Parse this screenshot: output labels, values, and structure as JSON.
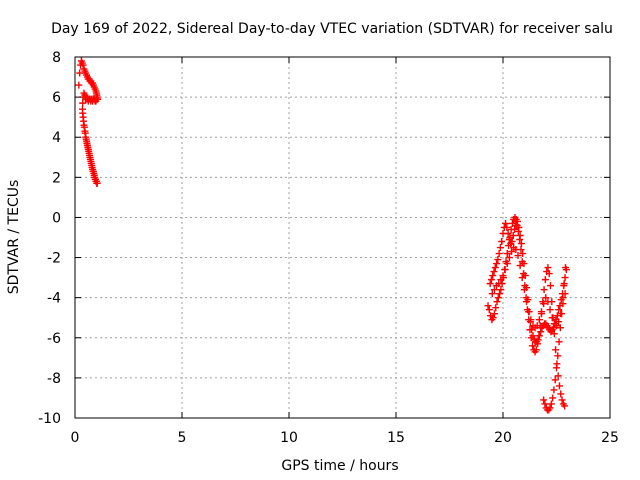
{
  "chart_data": {
    "type": "scatter",
    "title": "Day 169 of 2022, Sidereal Day-to-day VTEC variation (SDTVAR) for receiver salu",
    "xlabel": "GPS time / hours",
    "ylabel": "SDTVAR / TECUs",
    "xlim": [
      0,
      25
    ],
    "ylim": [
      -10,
      8
    ],
    "x_ticks": [
      0,
      5,
      10,
      15,
      20,
      25
    ],
    "y_ticks": [
      -10,
      -8,
      -6,
      -4,
      -2,
      0,
      2,
      4,
      6,
      8
    ],
    "grid": true,
    "marker": "+",
    "colors": {
      "series": "#ff0000"
    },
    "series": [
      {
        "x": [
          0.18,
          0.22,
          0.26,
          0.3,
          0.34,
          0.38,
          0.42,
          0.46,
          0.5,
          0.54,
          0.58,
          0.62,
          0.66,
          0.7,
          0.74,
          0.78,
          0.82,
          0.86,
          0.9,
          0.94,
          0.98,
          1.0,
          1.02,
          1.04,
          1.06,
          1.05,
          1.02,
          0.98,
          0.94,
          0.9,
          0.86,
          0.82,
          0.78,
          0.74,
          0.7,
          0.66,
          0.62,
          0.58,
          0.54,
          0.5,
          0.46,
          0.42,
          0.38,
          0.36,
          0.35,
          0.36,
          0.38,
          0.4,
          0.42,
          0.44,
          0.46,
          0.48,
          0.5,
          0.52,
          0.54,
          0.56,
          0.58,
          0.6,
          0.62,
          0.64,
          0.66,
          0.68,
          0.7,
          0.72,
          0.74,
          0.76,
          0.78,
          0.8,
          0.82,
          0.84,
          0.86,
          0.88,
          0.9,
          0.92,
          0.94,
          0.96,
          0.98,
          1.0,
          1.02,
          1.04
        ],
        "y": [
          6.6,
          7.2,
          7.6,
          7.8,
          7.7,
          7.6,
          7.4,
          7.3,
          7.2,
          7.1,
          7.0,
          6.9,
          6.9,
          6.8,
          6.8,
          6.7,
          6.7,
          6.6,
          6.5,
          6.4,
          6.3,
          6.2,
          6.1,
          6.0,
          5.9,
          5.9,
          5.9,
          5.8,
          5.8,
          5.9,
          5.9,
          5.8,
          5.9,
          5.8,
          5.9,
          5.9,
          5.8,
          5.9,
          6.0,
          5.9,
          6.1,
          6.2,
          6.0,
          5.7,
          5.4,
          5.2,
          5.0,
          4.8,
          4.6,
          4.5,
          4.3,
          4.2,
          4.0,
          3.9,
          3.8,
          3.7,
          3.6,
          3.5,
          3.4,
          3.3,
          3.2,
          3.1,
          3.0,
          2.9,
          2.8,
          2.7,
          2.6,
          2.5,
          2.4,
          2.3,
          2.3,
          2.2,
          2.1,
          2.0,
          1.9,
          1.9,
          1.8,
          1.8,
          1.7,
          1.7
        ]
      },
      {
        "x": [
          19.3,
          19.36,
          19.42,
          19.48,
          19.54,
          19.6,
          19.66,
          19.72,
          19.78,
          19.84,
          19.9,
          19.96,
          20.02,
          20.08,
          20.14,
          20.2,
          20.26,
          20.32,
          20.38,
          20.44,
          20.5,
          20.56,
          20.62,
          20.68,
          20.74,
          20.8,
          20.86,
          20.92,
          20.98,
          21.04,
          21.1,
          21.16,
          21.22,
          21.28,
          21.34,
          21.4,
          21.46,
          21.52,
          21.58,
          21.64,
          21.7,
          21.76,
          21.82,
          21.88,
          21.94,
          22.0,
          22.06,
          22.12,
          22.18,
          22.24,
          22.3,
          22.36,
          22.42,
          22.48,
          22.54,
          22.6,
          22.66,
          22.72,
          22.78,
          22.84,
          22.9,
          22.96
        ],
        "y": [
          -4.4,
          -4.6,
          -4.9,
          -5.1,
          -5.0,
          -4.8,
          -4.5,
          -4.2,
          -4.0,
          -3.8,
          -3.6,
          -3.3,
          -3.0,
          -2.6,
          -2.2,
          -1.8,
          -1.4,
          -1.0,
          -0.6,
          -0.3,
          -0.1,
          0.0,
          -0.1,
          -0.2,
          -0.5,
          -0.9,
          -1.3,
          -1.8,
          -2.3,
          -2.9,
          -3.5,
          -4.1,
          -4.7,
          -5.2,
          -5.6,
          -5.9,
          -6.1,
          -6.2,
          -6.2,
          -6.1,
          -5.9,
          -5.7,
          -5.5,
          -5.4,
          -5.3,
          -5.3,
          -5.4,
          -5.5,
          -5.6,
          -5.7,
          -5.6,
          -5.5,
          -5.3,
          -5.1,
          -4.9,
          -4.6,
          -4.4,
          -4.1,
          -3.8,
          -3.4,
          -3.0,
          -2.6
        ]
      },
      {
        "x": [
          19.4,
          19.46,
          19.52,
          19.58,
          19.64,
          19.7,
          19.76,
          19.82,
          19.88,
          19.94,
          20.0,
          20.06,
          20.12,
          20.18,
          20.24,
          20.3,
          20.36,
          20.42,
          20.48,
          20.54,
          20.6,
          20.66,
          20.72,
          20.78,
          20.84,
          20.9,
          20.96,
          21.02,
          21.08,
          21.14,
          21.2,
          21.26,
          21.32,
          21.38,
          21.44,
          21.5,
          21.56,
          21.62,
          21.68,
          21.74,
          21.8,
          21.86,
          21.92,
          21.98,
          22.04,
          22.1,
          22.16,
          22.22,
          22.28,
          22.34,
          22.4,
          22.46,
          22.52,
          22.58,
          22.64,
          22.7,
          22.76,
          22.82,
          22.88
        ],
        "y": [
          -3.3,
          -3.1,
          -2.9,
          -2.7,
          -2.5,
          -2.3,
          -2.1,
          -1.8,
          -1.5,
          -1.2,
          -0.8,
          -0.5,
          -0.3,
          -0.5,
          -0.8,
          -1.1,
          -1.3,
          -1.2,
          -0.9,
          -0.6,
          -0.4,
          -0.4,
          -0.7,
          -1.1,
          -1.6,
          -2.2,
          -2.8,
          -3.4,
          -4.0,
          -4.6,
          -5.1,
          -5.6,
          -6.0,
          -6.4,
          -6.6,
          -6.7,
          -6.6,
          -6.3,
          -5.9,
          -5.4,
          -4.8,
          -4.2,
          -3.6,
          -3.1,
          -2.7,
          -2.5,
          -2.8,
          -3.4,
          -4.2,
          -5.0,
          -5.8,
          -6.6,
          -7.3,
          -7.9,
          -8.4,
          -8.8,
          -9.1,
          -9.3,
          -9.4
        ]
      },
      {
        "x": [
          19.5,
          19.6,
          19.7,
          19.8,
          19.9,
          20.0,
          20.1,
          20.2,
          20.3,
          20.4,
          20.5,
          20.6,
          20.7,
          20.8,
          20.9,
          21.0,
          21.1,
          21.2,
          21.3,
          21.4,
          21.5,
          21.6,
          21.7,
          21.8,
          21.9,
          22.0,
          22.1,
          22.2,
          22.3,
          22.4,
          22.5,
          22.6,
          22.7,
          22.8,
          22.9
        ],
        "y": [
          -3.8,
          -3.6,
          -3.4,
          -3.3,
          -3.1,
          -2.9,
          -2.6,
          -2.3,
          -2.0,
          -1.7,
          -1.5,
          -1.6,
          -1.9,
          -2.4,
          -3.0,
          -3.6,
          -4.2,
          -4.7,
          -5.1,
          -5.4,
          -5.5,
          -5.4,
          -5.1,
          -4.7,
          -4.3,
          -4.0,
          -4.2,
          -4.6,
          -5.0,
          -5.3,
          -5.4,
          -5.2,
          -4.8,
          -4.3,
          -3.8
        ]
      },
      {
        "x": [
          21.9,
          21.96,
          22.02,
          22.08,
          22.14,
          22.2,
          22.26,
          22.32,
          22.38,
          22.44,
          22.5,
          22.56,
          22.62,
          22.68,
          22.74,
          22.8,
          22.86,
          22.92
        ],
        "y": [
          -9.1,
          -9.3,
          -9.5,
          -9.6,
          -9.6,
          -9.5,
          -9.3,
          -9.0,
          -8.6,
          -8.1,
          -7.5,
          -6.9,
          -6.2,
          -5.5,
          -4.8,
          -4.0,
          -3.3,
          -2.5
        ]
      }
    ]
  }
}
